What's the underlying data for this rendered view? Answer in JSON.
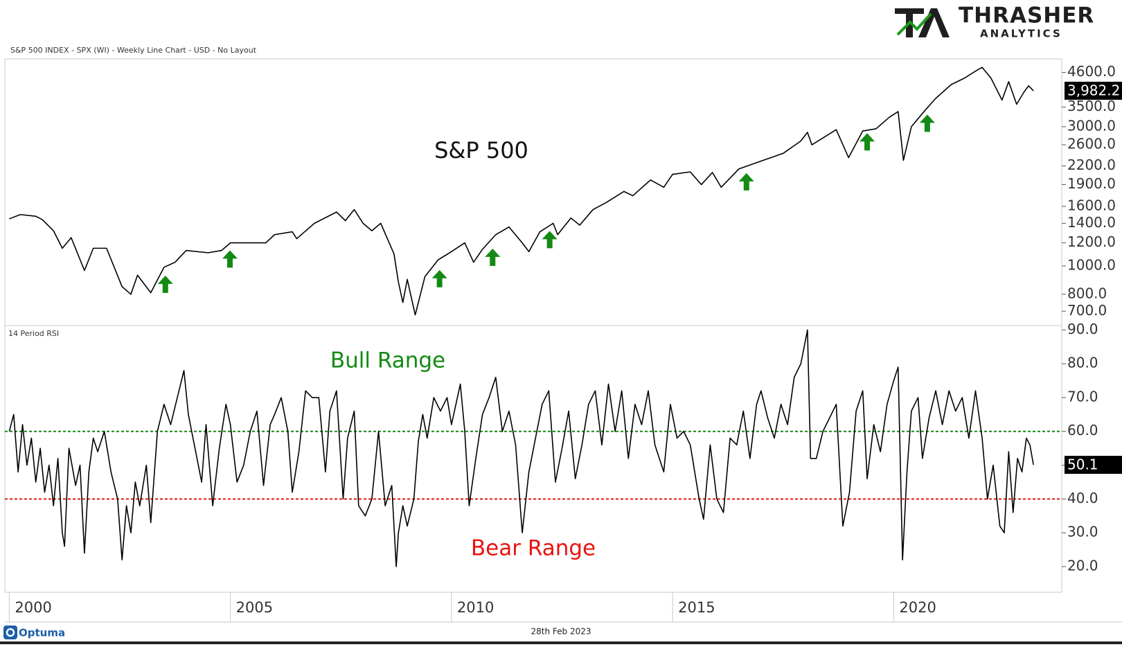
{
  "header": {
    "logo_title": "THRASHER",
    "logo_subtitle": "ANALYTICS"
  },
  "chart_data": [
    {
      "type": "line",
      "title": "S&P 500 INDEX - SPX (WI) - Weekly Line Chart - USD - No Layout",
      "label": "S&P 500",
      "x": [
        2000.0,
        2000.25,
        2000.6,
        2000.75,
        2001.0,
        2001.2,
        2001.4,
        2001.7,
        2001.9,
        2002.2,
        2002.55,
        2002.75,
        2002.9,
        2003.2,
        2003.5,
        2003.75,
        2004.0,
        2004.5,
        2004.8,
        2005.0,
        2005.5,
        2005.8,
        2006.0,
        2006.4,
        2006.5,
        2006.9,
        2007.4,
        2007.6,
        2007.8,
        2008.0,
        2008.2,
        2008.4,
        2008.7,
        2008.8,
        2008.9,
        2009.0,
        2009.18,
        2009.4,
        2009.7,
        2010.0,
        2010.3,
        2010.5,
        2010.7,
        2011.0,
        2011.3,
        2011.6,
        2011.75,
        2012.0,
        2012.3,
        2012.4,
        2012.7,
        2012.9,
        2013.2,
        2013.5,
        2013.9,
        2014.1,
        2014.5,
        2014.8,
        2015.0,
        2015.4,
        2015.65,
        2015.9,
        2016.1,
        2016.5,
        2016.9,
        2017.5,
        2017.9,
        2018.05,
        2018.15,
        2018.7,
        2018.98,
        2019.3,
        2019.6,
        2019.9,
        2020.1,
        2020.22,
        2020.4,
        2020.7,
        2020.95,
        2021.3,
        2021.6,
        2021.9,
        2022.0,
        2022.2,
        2022.45,
        2022.6,
        2022.78,
        2022.95,
        2023.05,
        2023.16
      ],
      "values": [
        1450,
        1500,
        1480,
        1440,
        1320,
        1150,
        1250,
        965,
        1150,
        1150,
        850,
        800,
        930,
        810,
        990,
        1030,
        1130,
        1110,
        1130,
        1200,
        1200,
        1200,
        1280,
        1310,
        1240,
        1400,
        1530,
        1430,
        1560,
        1400,
        1320,
        1400,
        1100,
        880,
        750,
        900,
        680,
        920,
        1050,
        1120,
        1200,
        1030,
        1140,
        1280,
        1360,
        1200,
        1120,
        1310,
        1400,
        1280,
        1460,
        1380,
        1560,
        1650,
        1800,
        1740,
        1970,
        1860,
        2060,
        2100,
        1900,
        2090,
        1860,
        2150,
        2260,
        2430,
        2680,
        2870,
        2600,
        2930,
        2350,
        2900,
        2950,
        3230,
        3380,
        2300,
        3000,
        3400,
        3750,
        4180,
        4400,
        4700,
        4790,
        4400,
        3700,
        4280,
        3580,
        3950,
        4140,
        3982.2
      ],
      "value_labels": [
        null,
        null,
        null,
        null,
        null,
        null,
        null,
        null,
        null,
        null,
        null,
        null,
        null,
        null,
        null,
        null,
        null,
        null,
        null,
        null,
        null,
        null,
        null,
        null,
        null,
        null,
        null,
        null,
        null,
        null,
        null,
        null,
        null,
        null,
        null,
        null,
        null,
        null,
        null,
        null,
        null,
        null,
        null,
        null,
        null,
        null,
        null,
        null,
        null,
        null,
        null,
        null,
        null,
        null,
        null,
        null,
        null,
        null,
        null,
        null,
        null,
        null,
        null,
        null,
        null,
        null,
        null,
        null,
        null,
        null,
        null,
        null,
        null,
        null,
        null,
        null,
        null,
        null,
        null,
        null,
        null,
        null,
        null,
        null,
        null,
        null,
        null,
        null,
        null,
        "3,982.2"
      ],
      "color": "#000000",
      "log_scale": true,
      "xlim": [
        1999.9,
        2023.8
      ],
      "ylim": [
        625,
        5120
      ],
      "yticks": [
        {
          "value": 700,
          "label": "700.0"
        },
        {
          "value": 800,
          "label": "800.0"
        },
        {
          "value": 1000,
          "label": "1000.0"
        },
        {
          "value": 1200,
          "label": "1200.0"
        },
        {
          "value": 1400,
          "label": "1400.0"
        },
        {
          "value": 1600,
          "label": "1600.0"
        },
        {
          "value": 1900,
          "label": "1900.0"
        },
        {
          "value": 2200,
          "label": "2200.0"
        },
        {
          "value": 2600,
          "label": "2600.0"
        },
        {
          "value": 3000,
          "label": "3000.0"
        },
        {
          "value": 3500,
          "label": "3500.0"
        },
        {
          "value": 4600,
          "label": "4600.0"
        }
      ],
      "arrows": {
        "x": [
          2003.53,
          2004.99,
          2009.73,
          2010.93,
          2012.22,
          2016.67,
          2019.4,
          2020.76
        ],
        "values": [
          927,
          1131,
          969,
          1147,
          1318,
          2080,
          2850,
          3300
        ],
        "color": "#138a13"
      }
    },
    {
      "type": "line",
      "title": "14 Period RSI",
      "x": [
        2000.0,
        2000.1,
        2000.2,
        2000.3,
        2000.4,
        2000.5,
        2000.6,
        2000.7,
        2000.8,
        2000.9,
        2001.0,
        2001.1,
        2001.2,
        2001.25,
        2001.35,
        2001.5,
        2001.6,
        2001.7,
        2001.8,
        2001.9,
        2002.0,
        2002.15,
        2002.3,
        2002.45,
        2002.55,
        2002.65,
        2002.75,
        2002.85,
        2002.95,
        2003.1,
        2003.2,
        2003.35,
        2003.5,
        2003.65,
        2003.8,
        2003.95,
        2004.05,
        2004.2,
        2004.35,
        2004.45,
        2004.6,
        2004.75,
        2004.9,
        2005.0,
        2005.15,
        2005.3,
        2005.45,
        2005.6,
        2005.75,
        2005.9,
        2006.0,
        2006.15,
        2006.3,
        2006.4,
        2006.55,
        2006.7,
        2006.85,
        2007.0,
        2007.15,
        2007.25,
        2007.4,
        2007.55,
        2007.65,
        2007.8,
        2007.9,
        2008.05,
        2008.2,
        2008.35,
        2008.5,
        2008.65,
        2008.75,
        2008.8,
        2008.9,
        2009.0,
        2009.15,
        2009.25,
        2009.35,
        2009.45,
        2009.6,
        2009.75,
        2009.9,
        2010.0,
        2010.2,
        2010.3,
        2010.4,
        2010.55,
        2010.7,
        2010.85,
        2011.0,
        2011.15,
        2011.3,
        2011.45,
        2011.6,
        2011.75,
        2011.9,
        2012.05,
        2012.2,
        2012.35,
        2012.5,
        2012.65,
        2012.8,
        2012.95,
        2013.1,
        2013.25,
        2013.4,
        2013.55,
        2013.7,
        2013.85,
        2014.0,
        2014.15,
        2014.3,
        2014.45,
        2014.6,
        2014.8,
        2014.95,
        2015.1,
        2015.25,
        2015.4,
        2015.6,
        2015.7,
        2015.85,
        2016.0,
        2016.15,
        2016.3,
        2016.45,
        2016.6,
        2016.75,
        2016.9,
        2017.0,
        2017.15,
        2017.3,
        2017.45,
        2017.6,
        2017.75,
        2017.9,
        2018.05,
        2018.12,
        2018.25,
        2018.4,
        2018.55,
        2018.7,
        2018.85,
        2019.0,
        2019.15,
        2019.3,
        2019.4,
        2019.55,
        2019.7,
        2019.85,
        2020.0,
        2020.1,
        2020.2,
        2020.3,
        2020.4,
        2020.55,
        2020.65,
        2020.8,
        2020.95,
        2021.1,
        2021.25,
        2021.4,
        2021.55,
        2021.7,
        2021.85,
        2022.0,
        2022.12,
        2022.25,
        2022.4,
        2022.5,
        2022.6,
        2022.7,
        2022.8,
        2022.9,
        2023.0,
        2023.08,
        2023.16
      ],
      "values": [
        60,
        65,
        48,
        62,
        50,
        58,
        45,
        55,
        42,
        50,
        38,
        52,
        30,
        26,
        55,
        44,
        50,
        24,
        48,
        58,
        54,
        60,
        48,
        40,
        22,
        38,
        30,
        45,
        38,
        50,
        33,
        60,
        68,
        62,
        70,
        78,
        65,
        55,
        45,
        62,
        38,
        55,
        68,
        62,
        45,
        50,
        60,
        66,
        44,
        62,
        65,
        70,
        60,
        42,
        54,
        72,
        70,
        70,
        48,
        66,
        72,
        40,
        58,
        66,
        38,
        35,
        40,
        60,
        38,
        44,
        20,
        30,
        38,
        32,
        40,
        57,
        65,
        58,
        70,
        66,
        70,
        62,
        74,
        60,
        38,
        52,
        65,
        70,
        76,
        60,
        66,
        56,
        30,
        48,
        58,
        68,
        72,
        45,
        55,
        66,
        46,
        56,
        68,
        72,
        56,
        74,
        60,
        72,
        52,
        68,
        62,
        72,
        56,
        48,
        68,
        58,
        60,
        56,
        40,
        34,
        56,
        40,
        36,
        58,
        56,
        66,
        52,
        68,
        72,
        64,
        58,
        68,
        62,
        76,
        80,
        90,
        52,
        52,
        60,
        64,
        68,
        32,
        42,
        66,
        72,
        46,
        62,
        54,
        68,
        75,
        79,
        22,
        48,
        66,
        70,
        52,
        64,
        72,
        62,
        72,
        66,
        70,
        58,
        72,
        58,
        40,
        50,
        32,
        30,
        54,
        36,
        52,
        48,
        58,
        56,
        50.1
      ],
      "color": "#000000",
      "xlim": [
        1999.9,
        2023.8
      ],
      "ylim": [
        12.4,
        91.3
      ],
      "yticks": [
        {
          "value": 20,
          "label": "20.0"
        },
        {
          "value": 30,
          "label": "30.0"
        },
        {
          "value": 40,
          "label": "40.0"
        },
        {
          "value": 50,
          "label": "50.0"
        },
        {
          "value": 60,
          "label": "60.0"
        },
        {
          "value": 70,
          "label": "70.0"
        },
        {
          "value": 80,
          "label": "80.0"
        },
        {
          "value": 90,
          "label": "90.0"
        }
      ],
      "xticks": [
        2000,
        2005,
        2010,
        2015,
        2020
      ],
      "reference_lines": [
        {
          "value": 60,
          "color": "#138a13",
          "label": "Bull Range"
        },
        {
          "value": 40,
          "color": "#e8140f",
          "label": "Bear Range"
        }
      ]
    }
  ],
  "footer": {
    "date": "28th Feb 2023",
    "brand": "Optuma"
  }
}
